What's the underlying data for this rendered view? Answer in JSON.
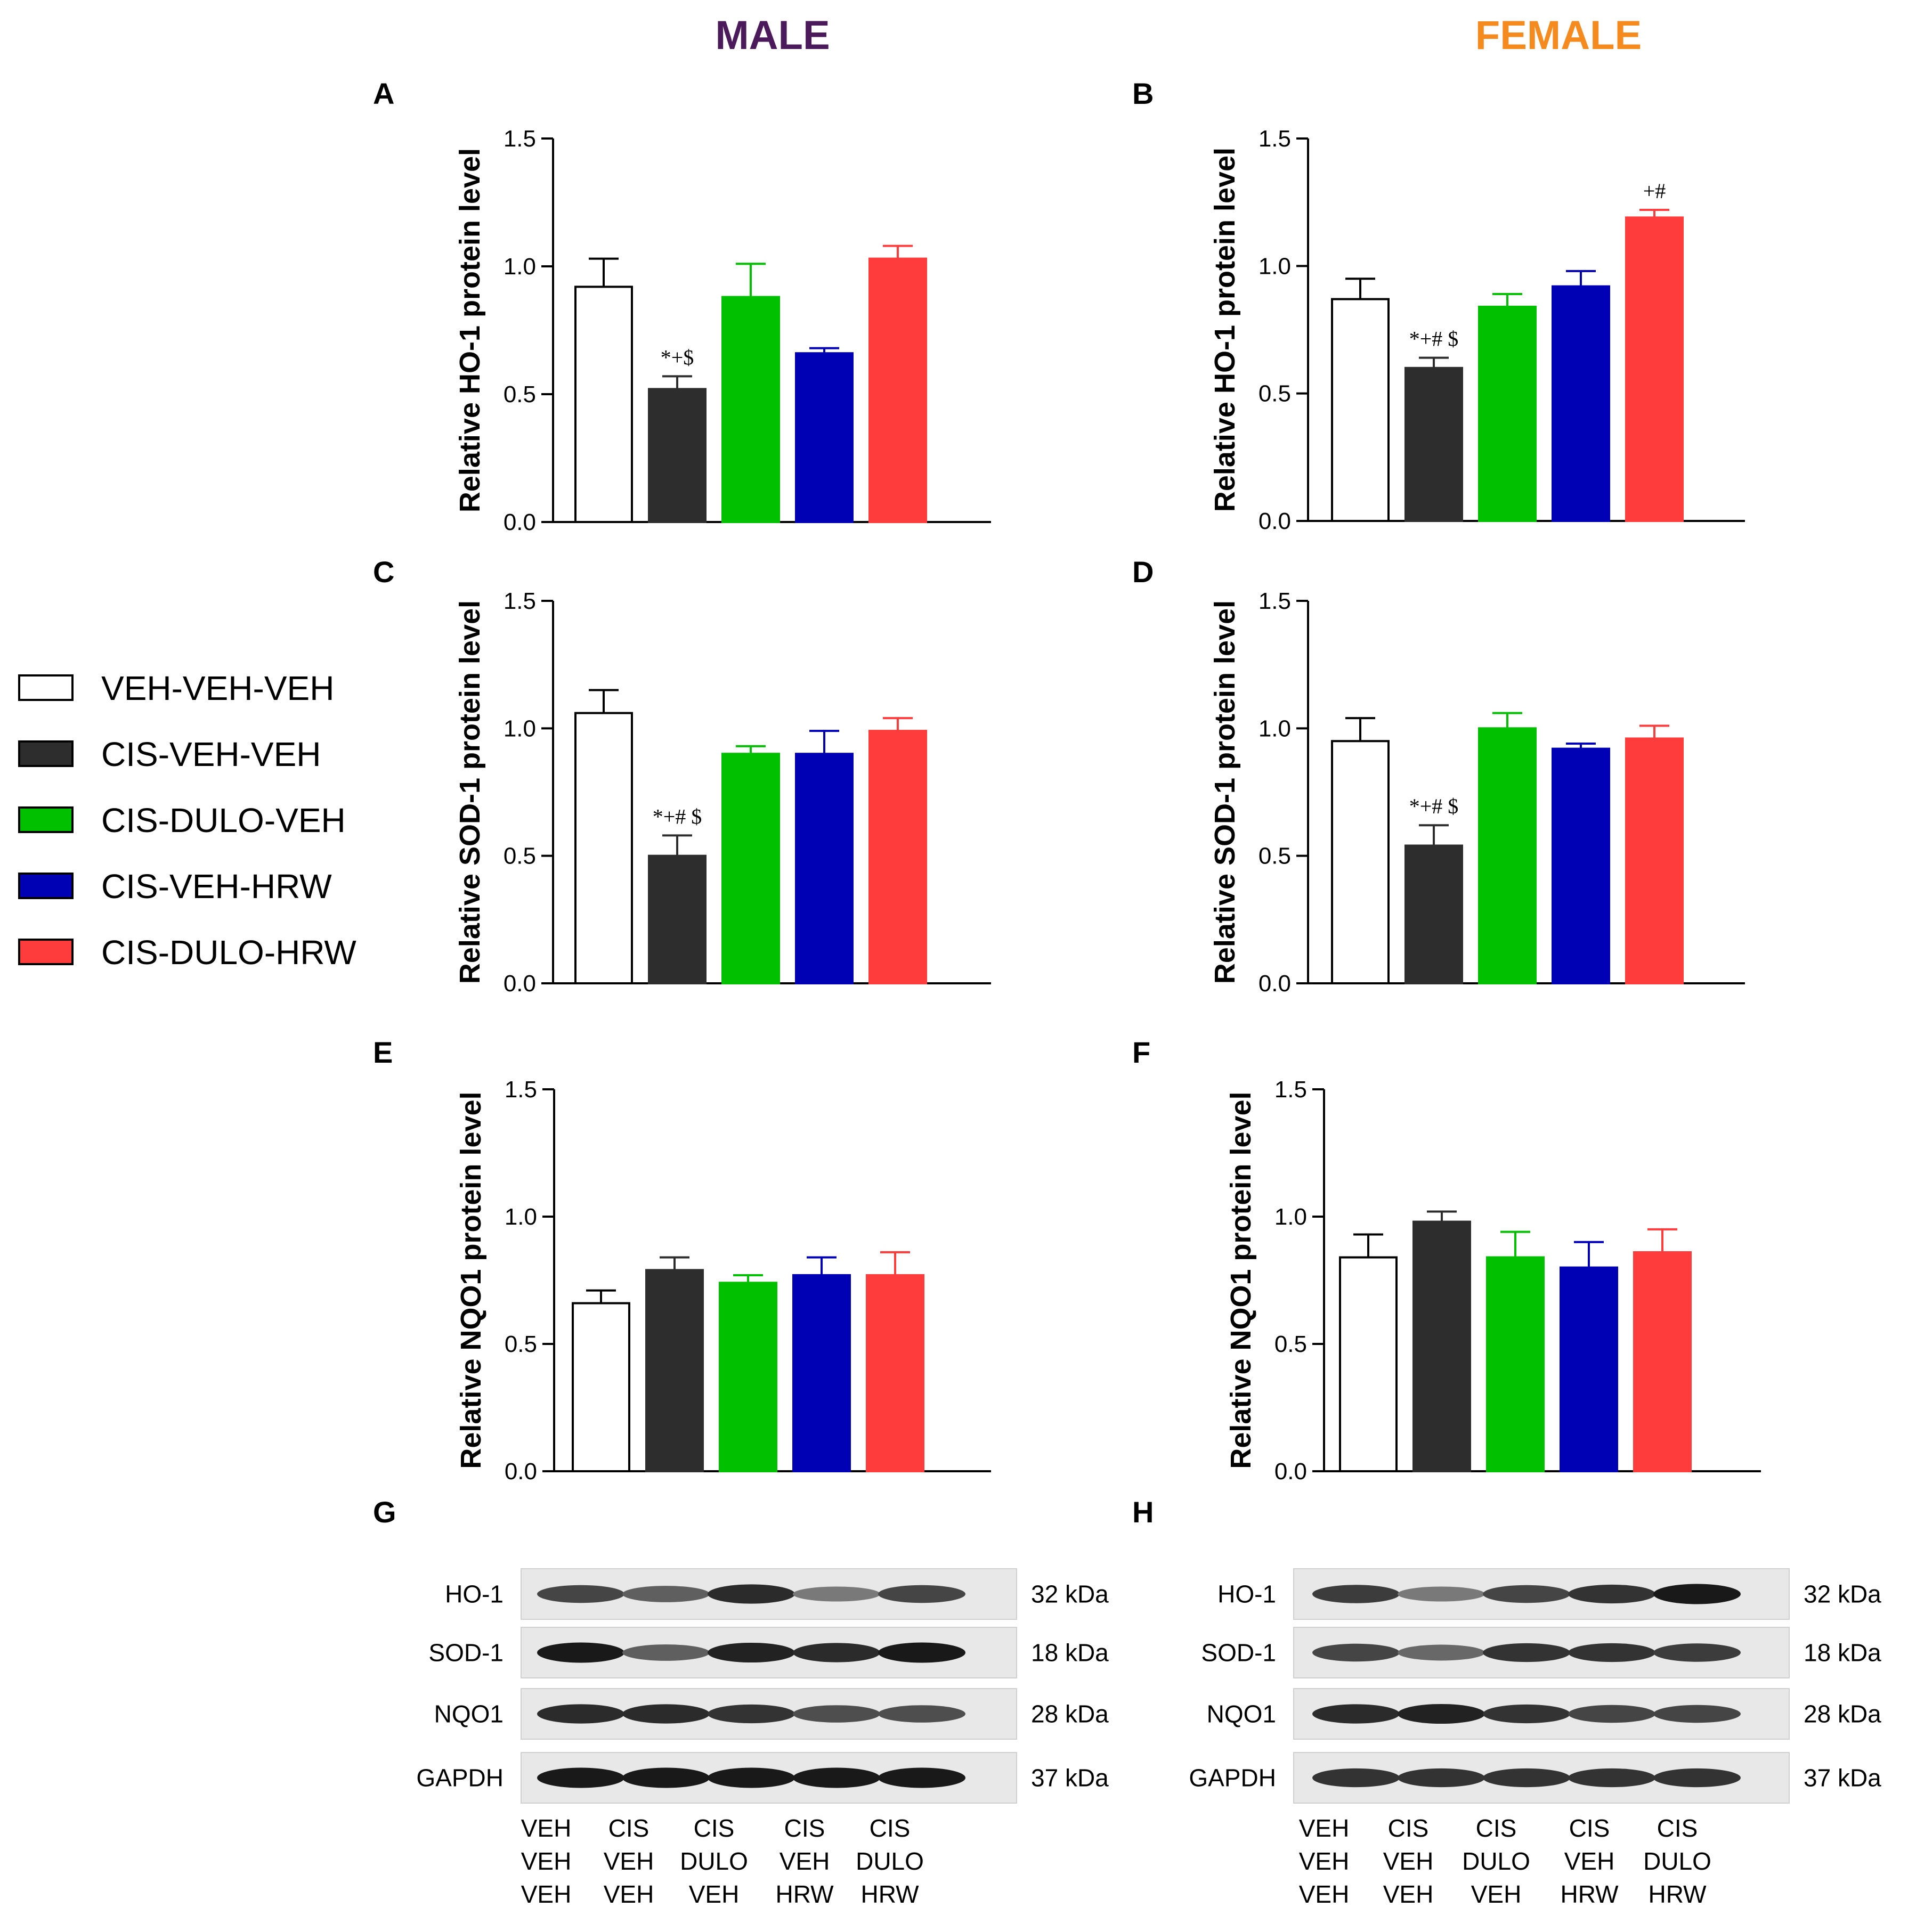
{
  "sexes": [
    {
      "label": "MALE",
      "color": "#4a1a5a"
    },
    {
      "label": "FEMALE",
      "color": "#f58a1f"
    }
  ],
  "legend": [
    {
      "label": "VEH-VEH-VEH",
      "color": "#ffffff"
    },
    {
      "label": "CIS-VEH-VEH",
      "color": "#2d2d2d"
    },
    {
      "label": "CIS-DULO-VEH",
      "color": "#00c000"
    },
    {
      "label": "CIS-VEH-HRW",
      "color": "#0000b4"
    },
    {
      "label": "CIS-DULO-HRW",
      "color": "#ff3c3c"
    }
  ],
  "chart_data": [
    {
      "panel": "A",
      "type": "bar",
      "ylabel": "Relative HO-1 protein level",
      "ylim": [
        0,
        1.5
      ],
      "yticks": [
        "0.0",
        "0.5",
        "1.0",
        "1.5"
      ],
      "values": [
        0.92,
        0.52,
        0.88,
        0.66,
        1.03
      ],
      "errors": [
        0.11,
        0.05,
        0.13,
        0.02,
        0.05
      ],
      "annotations": [
        "",
        "*+$",
        "",
        "",
        ""
      ]
    },
    {
      "panel": "B",
      "type": "bar",
      "ylabel": "Relative HO-1 protein level",
      "ylim": [
        0,
        1.5
      ],
      "yticks": [
        "0.0",
        "0.5",
        "1.0",
        "1.5"
      ],
      "values": [
        0.87,
        0.6,
        0.84,
        0.92,
        1.19
      ],
      "errors": [
        0.08,
        0.04,
        0.05,
        0.06,
        0.03
      ],
      "annotations": [
        "",
        "*+# $",
        "",
        "",
        "+#"
      ]
    },
    {
      "panel": "C",
      "type": "bar",
      "ylabel": "Relative SOD-1 protein level",
      "ylim": [
        0,
        1.5
      ],
      "yticks": [
        "0.0",
        "0.5",
        "1.0",
        "1.5"
      ],
      "values": [
        1.06,
        0.5,
        0.9,
        0.9,
        0.99
      ],
      "errors": [
        0.09,
        0.08,
        0.03,
        0.09,
        0.05
      ],
      "annotations": [
        "",
        "*+# $",
        "",
        "",
        ""
      ]
    },
    {
      "panel": "D",
      "type": "bar",
      "ylabel": "Relative SOD-1 protein level",
      "ylim": [
        0,
        1.5
      ],
      "yticks": [
        "0.0",
        "0.5",
        "1.0",
        "1.5"
      ],
      "values": [
        0.95,
        0.54,
        1.0,
        0.92,
        0.96
      ],
      "errors": [
        0.09,
        0.08,
        0.06,
        0.02,
        0.05
      ],
      "annotations": [
        "",
        "*+# $",
        "",
        "",
        ""
      ]
    },
    {
      "panel": "E",
      "type": "bar",
      "ylabel": "Relative NQO1 protein level",
      "ylim": [
        0,
        1.5
      ],
      "yticks": [
        "0.0",
        "0.5",
        "1.0",
        "1.5"
      ],
      "values": [
        0.66,
        0.79,
        0.74,
        0.77,
        0.77
      ],
      "errors": [
        0.05,
        0.05,
        0.03,
        0.07,
        0.09
      ],
      "annotations": [
        "",
        "",
        "",
        "",
        ""
      ]
    },
    {
      "panel": "F",
      "type": "bar",
      "ylabel": "Relative NQO1 protein level",
      "ylim": [
        0,
        1.5
      ],
      "yticks": [
        "0.0",
        "0.5",
        "1.0",
        "1.5"
      ],
      "values": [
        0.84,
        0.98,
        0.84,
        0.8,
        0.86
      ],
      "errors": [
        0.09,
        0.04,
        0.1,
        0.1,
        0.09
      ],
      "annotations": [
        "",
        "",
        "",
        "",
        ""
      ]
    }
  ],
  "blots": [
    {
      "panel": "G",
      "rows": [
        {
          "protein": "HO-1",
          "kda": "32 kDa",
          "intensity": [
            0.75,
            0.6,
            0.9,
            0.45,
            0.75
          ]
        },
        {
          "protein": "SOD-1",
          "kda": "18 kDa",
          "intensity": [
            1.0,
            0.6,
            0.95,
            0.9,
            1.0
          ]
        },
        {
          "protein": "NQO1",
          "kda": "28 kDa",
          "intensity": [
            0.9,
            0.9,
            0.85,
            0.7,
            0.7
          ]
        },
        {
          "protein": "GAPDH",
          "kda": "37 kDa",
          "intensity": [
            1.0,
            1.0,
            1.0,
            1.0,
            1.0
          ]
        }
      ],
      "lanes": [
        [
          "VEH",
          "VEH",
          "VEH"
        ],
        [
          "CIS",
          "VEH",
          "VEH"
        ],
        [
          "CIS",
          "DULO",
          "VEH"
        ],
        [
          "CIS",
          "VEH",
          "HRW"
        ],
        [
          "CIS",
          "DULO",
          "HRW"
        ]
      ]
    },
    {
      "panel": "H",
      "rows": [
        {
          "protein": "HO-1",
          "kda": "32 kDa",
          "intensity": [
            0.8,
            0.45,
            0.75,
            0.85,
            1.0
          ]
        },
        {
          "protein": "SOD-1",
          "kda": "18 kDa",
          "intensity": [
            0.75,
            0.55,
            0.85,
            0.85,
            0.8
          ]
        },
        {
          "protein": "NQO1",
          "kda": "28 kDa",
          "intensity": [
            0.9,
            0.95,
            0.85,
            0.75,
            0.75
          ]
        },
        {
          "protein": "GAPDH",
          "kda": "37 kDa",
          "intensity": [
            0.85,
            0.85,
            0.85,
            0.85,
            0.85
          ]
        }
      ],
      "lanes": [
        [
          "VEH",
          "VEH",
          "VEH"
        ],
        [
          "CIS",
          "VEH",
          "VEH"
        ],
        [
          "CIS",
          "DULO",
          "VEH"
        ],
        [
          "CIS",
          "VEH",
          "HRW"
        ],
        [
          "CIS",
          "DULO",
          "HRW"
        ]
      ]
    }
  ]
}
